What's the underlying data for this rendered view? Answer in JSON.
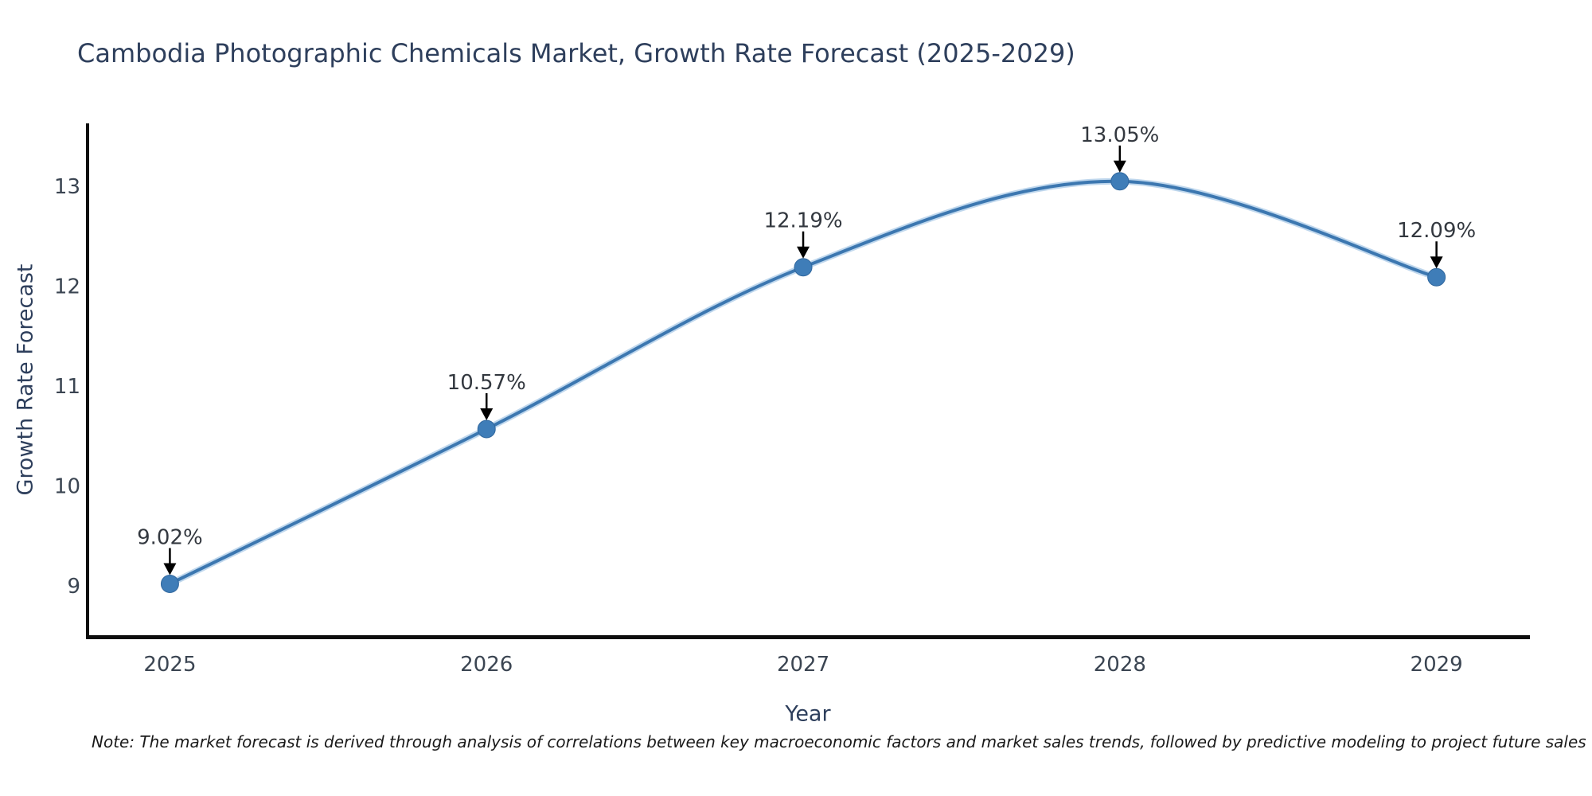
{
  "figure": {
    "footnote": "Note: The market forecast is derived through analysis of correlations between key macroeconomic factors and market sales trends, followed by predictive modeling to project future sales"
  },
  "chart_data": {
    "type": "line",
    "title": "Cambodia Photographic Chemicals Market, Growth Rate Forecast (2025-2029)",
    "xlabel": "Year",
    "ylabel": "Growth Rate Forecast",
    "x": [
      2025,
      2026,
      2027,
      2028,
      2029
    ],
    "series": [
      {
        "name": "Growth Rate Forecast",
        "values": [
          9.02,
          10.57,
          12.19,
          13.05,
          12.09
        ]
      }
    ],
    "point_labels": [
      "9.02%",
      "10.57%",
      "12.19%",
      "13.05%",
      "12.09%"
    ],
    "xticks": [
      "2025",
      "2026",
      "2027",
      "2028",
      "2029"
    ],
    "yticks": [
      9,
      10,
      11,
      12,
      13
    ],
    "xlim": [
      2024.74,
      2029.29
    ],
    "ylim": [
      8.49,
      13.63
    ],
    "grid": false,
    "legend": "none",
    "line_style": "spline",
    "annotations": "value labels with downward arrows above each point",
    "colors": {
      "line": "#3c77b0",
      "line_halo": "#8ab6de",
      "marker": "#3f7db8",
      "marker_edge": "#30679e",
      "annotation_arrow": "#000000",
      "axis_spine": "#0d0d0d",
      "title_text": "#2e3f5c",
      "tick_text": "#3b4552",
      "annotation_text": "#33383f"
    }
  }
}
